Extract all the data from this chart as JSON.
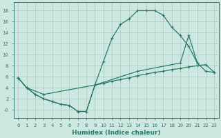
{
  "bg_color": "#cce8e0",
  "grid_color": "#a8c8c0",
  "line_color": "#2a7a6a",
  "xlabel": "Humidex (Indice chaleur)",
  "xlim": [
    -0.5,
    23.5
  ],
  "ylim": [
    -1.5,
    19.5
  ],
  "xticks": [
    0,
    1,
    2,
    3,
    4,
    5,
    6,
    7,
    8,
    9,
    10,
    11,
    12,
    13,
    14,
    15,
    16,
    17,
    18,
    19,
    20,
    21,
    22,
    23
  ],
  "yticks": [
    0,
    2,
    4,
    6,
    8,
    10,
    12,
    14,
    16,
    18
  ],
  "ytick_labels": [
    "-0",
    "2",
    "4",
    "6",
    "8",
    "10",
    "12",
    "14",
    "16",
    "18"
  ],
  "curve_top_x": [
    0,
    1,
    2,
    3,
    4,
    5,
    6,
    7,
    8,
    9,
    10,
    11,
    12,
    13,
    14,
    15,
    16,
    17,
    18,
    19,
    20,
    21
  ],
  "curve_top_y": [
    5.8,
    4.0,
    2.8,
    2.0,
    1.5,
    1.0,
    0.8,
    -0.3,
    -0.3,
    4.5,
    8.8,
    13.0,
    15.5,
    16.5,
    18.0,
    18.0,
    18.0,
    17.2,
    15.0,
    13.5,
    11.5,
    8.5
  ],
  "curve_mid_x": [
    0,
    1,
    3,
    9,
    14,
    19,
    20,
    21,
    22,
    23
  ],
  "curve_mid_y": [
    5.8,
    4.0,
    2.8,
    4.5,
    7.0,
    8.5,
    13.5,
    8.5,
    7.0,
    6.8
  ],
  "curve_bot_x": [
    0,
    1,
    2,
    3,
    4,
    5,
    6,
    7,
    8,
    9,
    10,
    11,
    12,
    13,
    14,
    15,
    16,
    17,
    18,
    19,
    20,
    21,
    22,
    23
  ],
  "curve_bot_y": [
    5.8,
    4.0,
    2.8,
    2.0,
    1.5,
    1.0,
    0.8,
    -0.3,
    -0.3,
    4.5,
    4.8,
    5.2,
    5.5,
    5.8,
    6.2,
    6.5,
    6.8,
    7.0,
    7.3,
    7.5,
    7.8,
    8.0,
    8.2,
    6.8
  ]
}
